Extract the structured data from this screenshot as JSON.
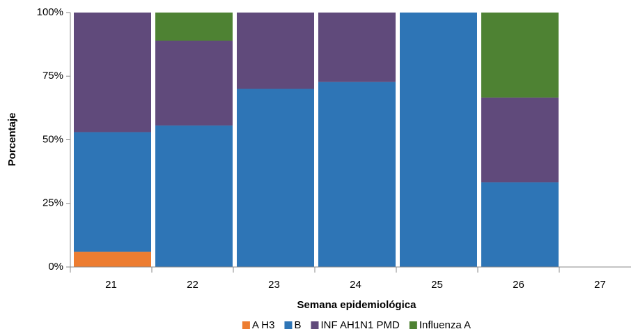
{
  "chart_data": {
    "type": "stacked_bar",
    "x_label": "Semana epidemiológica",
    "y_label": "Porcentaje",
    "categories": [
      "21",
      "22",
      "23",
      "24",
      "25",
      "26",
      "27"
    ],
    "series": [
      {
        "name": "A H3",
        "color": "#ed7d31",
        "values": [
          6,
          0,
          0,
          0,
          0,
          0,
          0
        ]
      },
      {
        "name": "B",
        "color": "#2e75b6",
        "values": [
          47,
          55.6,
          70,
          72.7,
          100,
          33.3,
          0
        ]
      },
      {
        "name": "INF AH1N1 PMD",
        "color": "#604a7b",
        "values": [
          47,
          33.3,
          30,
          27.3,
          0,
          33.3,
          0
        ]
      },
      {
        "name": "Influenza A",
        "color": "#4e8233",
        "values": [
          0,
          11.1,
          0,
          0,
          0,
          33.4,
          0
        ]
      }
    ],
    "ylim": [
      0,
      100
    ],
    "yticks": [
      {
        "value": 0,
        "label": "0%"
      },
      {
        "value": 25,
        "label": "25%"
      },
      {
        "value": 50,
        "label": "50%"
      },
      {
        "value": 75,
        "label": "75%"
      },
      {
        "value": 100,
        "label": "100%"
      }
    ],
    "grid": false,
    "legend": "bottom"
  }
}
